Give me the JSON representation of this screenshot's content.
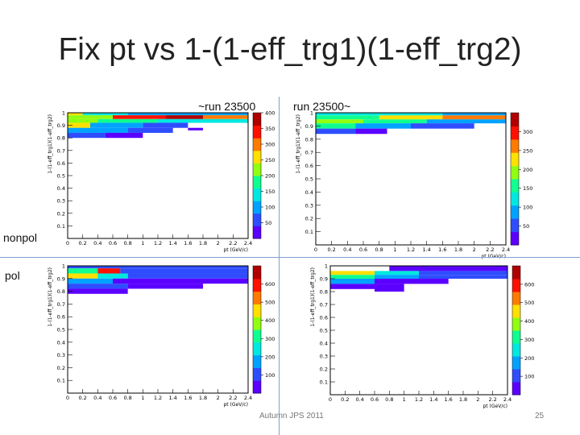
{
  "slide": {
    "title": "Fix pt vs 1-(1-eff_trg1)(1-eff_trg2)",
    "col_left": "~run 23500",
    "col_right": "run 23500~",
    "row_top": "nonpol",
    "row_bottom": "pol",
    "footer": "Autumn JPS 2011",
    "page_number": "25"
  },
  "colors": {
    "divider": "#7f9fd0",
    "palette": [
      "#5b00ff",
      "#2f4dff",
      "#00a2ff",
      "#00e8e0",
      "#10ff90",
      "#90ff10",
      "#ffe000",
      "#ff7a00",
      "#ff1000",
      "#b00000"
    ]
  },
  "chart_data": [
    {
      "type": "heatmap",
      "panel": "nonpol, ~run 23500",
      "xlabel": "pt (GeV/c)",
      "ylabel": "1-(1-eff_trg1)(1-eff_trg2)",
      "x_ticks": [
        "0",
        "0.2",
        "0.4",
        "0.6",
        "0.8",
        "1",
        "1.2",
        "1.4",
        "1.6",
        "1.8",
        "2",
        "2.2",
        "2.4"
      ],
      "y_ticks": [
        "0.1",
        "0.2",
        "0.3",
        "0.4",
        "0.5",
        "0.6",
        "0.7",
        "0.8",
        "0.9",
        "1"
      ],
      "xlim": [
        0,
        2.4
      ],
      "ylim": [
        0,
        1.0
      ],
      "zlim": [
        0,
        400
      ],
      "z_ticks": [
        "50",
        "100",
        "150",
        "200",
        "250",
        "300",
        "350",
        "400"
      ],
      "cells": [
        {
          "x0": 0.0,
          "x1": 0.2,
          "y0": 0.98,
          "y1": 1.0,
          "z": 260
        },
        {
          "x0": 0.2,
          "x1": 0.8,
          "y0": 0.98,
          "y1": 1.0,
          "z": 150
        },
        {
          "x0": 0.8,
          "x1": 2.4,
          "y0": 0.98,
          "y1": 1.0,
          "z": 110
        },
        {
          "x0": 0.0,
          "x1": 0.6,
          "y0": 0.95,
          "y1": 0.98,
          "z": 230
        },
        {
          "x0": 0.6,
          "x1": 1.3,
          "y0": 0.95,
          "y1": 0.98,
          "z": 330
        },
        {
          "x0": 1.3,
          "x1": 1.8,
          "y0": 0.95,
          "y1": 0.98,
          "z": 380
        },
        {
          "x0": 1.8,
          "x1": 2.4,
          "y0": 0.95,
          "y1": 0.98,
          "z": 300
        },
        {
          "x0": 0.0,
          "x1": 0.4,
          "y0": 0.92,
          "y1": 0.95,
          "z": 200
        },
        {
          "x0": 0.4,
          "x1": 1.2,
          "y0": 0.92,
          "y1": 0.95,
          "z": 160
        },
        {
          "x0": 1.2,
          "x1": 2.4,
          "y0": 0.92,
          "y1": 0.95,
          "z": 120
        },
        {
          "x0": 0.0,
          "x1": 0.3,
          "y0": 0.88,
          "y1": 0.92,
          "z": 240
        },
        {
          "x0": 0.3,
          "x1": 1.0,
          "y0": 0.88,
          "y1": 0.92,
          "z": 110
        },
        {
          "x0": 1.0,
          "x1": 1.6,
          "y0": 0.88,
          "y1": 0.92,
          "z": 70
        },
        {
          "x0": 0.0,
          "x1": 0.8,
          "y0": 0.84,
          "y1": 0.88,
          "z": 90
        },
        {
          "x0": 0.8,
          "x1": 1.4,
          "y0": 0.84,
          "y1": 0.88,
          "z": 40
        },
        {
          "x0": 0.0,
          "x1": 0.5,
          "y0": 0.8,
          "y1": 0.84,
          "z": 60
        },
        {
          "x0": 0.5,
          "x1": 1.0,
          "y0": 0.8,
          "y1": 0.84,
          "z": 25
        },
        {
          "x0": 1.6,
          "x1": 1.8,
          "y0": 0.86,
          "y1": 0.88,
          "z": 30
        }
      ]
    },
    {
      "type": "heatmap",
      "panel": "nonpol, run 23500~",
      "xlabel": "pt (GeV/c)",
      "ylabel": "1-(1-eff_trg1)(1-eff_trg2)",
      "x_ticks": [
        "0",
        "0.2",
        "0.4",
        "0.6",
        "0.8",
        "1",
        "1.2",
        "1.4",
        "1.6",
        "1.8",
        "2",
        "2.2",
        "2.4"
      ],
      "y_ticks": [
        "0.1",
        "0.2",
        "0.3",
        "0.4",
        "0.5",
        "0.6",
        "0.7",
        "0.8",
        "0.9",
        "1"
      ],
      "xlim": [
        0,
        2.4
      ],
      "ylim": [
        0,
        1.0
      ],
      "zlim": [
        0,
        350
      ],
      "z_ticks": [
        "50",
        "100",
        "150",
        "200",
        "250",
        "300"
      ],
      "cells": [
        {
          "x0": 0.0,
          "x1": 1.6,
          "y0": 0.98,
          "y1": 1.0,
          "z": 130
        },
        {
          "x0": 1.6,
          "x1": 2.4,
          "y0": 0.98,
          "y1": 1.0,
          "z": 90
        },
        {
          "x0": 0.0,
          "x1": 0.8,
          "y0": 0.95,
          "y1": 0.98,
          "z": 170
        },
        {
          "x0": 0.8,
          "x1": 1.6,
          "y0": 0.95,
          "y1": 0.98,
          "z": 210
        },
        {
          "x0": 1.6,
          "x1": 2.4,
          "y0": 0.95,
          "y1": 0.98,
          "z": 250
        },
        {
          "x0": 0.0,
          "x1": 0.6,
          "y0": 0.92,
          "y1": 0.95,
          "z": 180
        },
        {
          "x0": 0.6,
          "x1": 1.4,
          "y0": 0.92,
          "y1": 0.95,
          "z": 140
        },
        {
          "x0": 1.4,
          "x1": 2.4,
          "y0": 0.92,
          "y1": 0.95,
          "z": 100
        },
        {
          "x0": 0.0,
          "x1": 0.5,
          "y0": 0.88,
          "y1": 0.92,
          "z": 150
        },
        {
          "x0": 0.5,
          "x1": 1.2,
          "y0": 0.88,
          "y1": 0.92,
          "z": 80
        },
        {
          "x0": 1.2,
          "x1": 2.0,
          "y0": 0.88,
          "y1": 0.92,
          "z": 40
        },
        {
          "x0": 0.0,
          "x1": 0.5,
          "y0": 0.84,
          "y1": 0.88,
          "z": 60
        },
        {
          "x0": 0.5,
          "x1": 0.9,
          "y0": 0.84,
          "y1": 0.88,
          "z": 25
        }
      ]
    },
    {
      "type": "heatmap",
      "panel": "pol, ~run 23500",
      "xlabel": "pt (GeV/c)",
      "ylabel": "1-(1-eff_trg1)(1-eff_trg2)",
      "x_ticks": [
        "0",
        "0.2",
        "0.4",
        "0.6",
        "0.8",
        "1",
        "1.2",
        "1.4",
        "1.6",
        "1.8",
        "2",
        "2.2",
        "2.4"
      ],
      "y_ticks": [
        "0.1",
        "0.2",
        "0.3",
        "0.4",
        "0.5",
        "0.6",
        "0.7",
        "0.8",
        "0.9",
        "1"
      ],
      "xlim": [
        0,
        2.4
      ],
      "ylim": [
        0,
        1.0
      ],
      "zlim": [
        0,
        700
      ],
      "z_ticks": [
        "100",
        "200",
        "300",
        "400",
        "500",
        "600"
      ],
      "cells": [
        {
          "x0": 0.0,
          "x1": 2.4,
          "y0": 0.98,
          "y1": 1.0,
          "z": 80
        },
        {
          "x0": 0.0,
          "x1": 0.4,
          "y0": 0.94,
          "y1": 0.98,
          "z": 300
        },
        {
          "x0": 0.4,
          "x1": 0.7,
          "y0": 0.94,
          "y1": 0.98,
          "z": 560
        },
        {
          "x0": 0.7,
          "x1": 2.4,
          "y0": 0.94,
          "y1": 0.98,
          "z": 90
        },
        {
          "x0": 0.0,
          "x1": 0.4,
          "y0": 0.9,
          "y1": 0.94,
          "z": 420
        },
        {
          "x0": 0.4,
          "x1": 0.8,
          "y0": 0.9,
          "y1": 0.94,
          "z": 250
        },
        {
          "x0": 0.8,
          "x1": 2.4,
          "y0": 0.9,
          "y1": 0.94,
          "z": 70
        },
        {
          "x0": 0.0,
          "x1": 0.6,
          "y0": 0.86,
          "y1": 0.9,
          "z": 200
        },
        {
          "x0": 0.6,
          "x1": 2.4,
          "y0": 0.86,
          "y1": 0.9,
          "z": 50
        },
        {
          "x0": 0.0,
          "x1": 0.8,
          "y0": 0.82,
          "y1": 0.86,
          "z": 90
        },
        {
          "x0": 0.8,
          "x1": 1.8,
          "y0": 0.82,
          "y1": 0.86,
          "z": 30
        },
        {
          "x0": 0.0,
          "x1": 0.8,
          "y0": 0.78,
          "y1": 0.82,
          "z": 40
        }
      ]
    },
    {
      "type": "heatmap",
      "panel": "pol, run 23500~",
      "xlabel": "pt (GeV/c)",
      "ylabel": "1-(1-eff_trg1)(1-eff_trg2)",
      "x_ticks": [
        "0",
        "0.2",
        "0.4",
        "0.6",
        "0.8",
        "1",
        "1.2",
        "1.4",
        "1.6",
        "1.8",
        "2",
        "2.2",
        "2.4"
      ],
      "y_ticks": [
        "0.1",
        "0.2",
        "0.3",
        "0.4",
        "0.5",
        "0.6",
        "0.7",
        "0.8",
        "0.9",
        "1"
      ],
      "xlim": [
        0,
        2.4
      ],
      "ylim": [
        0,
        1.0
      ],
      "zlim": [
        0,
        700
      ],
      "z_ticks": [
        "100",
        "200",
        "300",
        "400",
        "500",
        "600"
      ],
      "cells": [
        {
          "x0": 0.8,
          "x1": 2.4,
          "y0": 0.96,
          "y1": 1.0,
          "z": 60
        },
        {
          "x0": 0.0,
          "x1": 0.6,
          "y0": 0.93,
          "y1": 0.96,
          "z": 420
        },
        {
          "x0": 0.6,
          "x1": 1.2,
          "y0": 0.93,
          "y1": 0.96,
          "z": 250
        },
        {
          "x0": 1.2,
          "x1": 2.4,
          "y0": 0.93,
          "y1": 0.96,
          "z": 90
        },
        {
          "x0": 0.0,
          "x1": 0.6,
          "y0": 0.9,
          "y1": 0.93,
          "z": 330
        },
        {
          "x0": 0.6,
          "x1": 1.2,
          "y0": 0.9,
          "y1": 0.93,
          "z": 180
        },
        {
          "x0": 1.2,
          "x1": 2.4,
          "y0": 0.9,
          "y1": 0.93,
          "z": 70
        },
        {
          "x0": 0.0,
          "x1": 0.6,
          "y0": 0.86,
          "y1": 0.9,
          "z": 160
        },
        {
          "x0": 0.6,
          "x1": 1.2,
          "y0": 0.86,
          "y1": 0.9,
          "z": 60
        },
        {
          "x0": 1.2,
          "x1": 1.6,
          "y0": 0.86,
          "y1": 0.9,
          "z": 30
        },
        {
          "x0": 0.0,
          "x1": 0.6,
          "y0": 0.82,
          "y1": 0.86,
          "z": 60
        },
        {
          "x0": 0.6,
          "x1": 1.0,
          "y0": 0.8,
          "y1": 0.86,
          "z": 25
        }
      ]
    }
  ]
}
